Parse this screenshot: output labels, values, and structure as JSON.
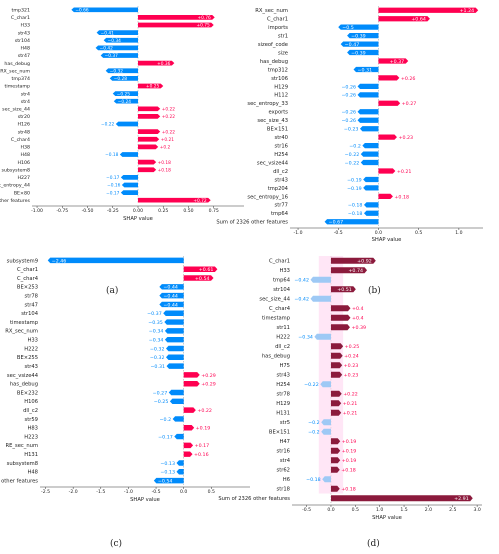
{
  "colors": {
    "pos": "#ff0051",
    "neg": "#008bfb",
    "zero": "#999999",
    "pos_dark": "#8b1a3c",
    "neg_light": "#9ec9f5",
    "highlight": "#ffd6f0"
  },
  "chart_data": [
    {
      "type": "bar",
      "panel": "(a)",
      "xlabel": "SHAP value",
      "xlim": [
        -1.05,
        1.05
      ],
      "xticks": [
        -1.0,
        -0.75,
        -0.5,
        -0.25,
        0.0,
        0.25,
        0.5,
        0.75
      ],
      "xtick_labels": [
        "-1.00",
        "-0.75",
        "-0.50",
        "-0.25",
        "0.00",
        "0.25",
        "0.50",
        "0.75"
      ],
      "categories": [
        "tmp321",
        "C_char1",
        "H33",
        "str43",
        "str104",
        "H48",
        "str47",
        "has_debug",
        "RX_sec_num",
        "tmp374",
        "timestamp",
        "str4",
        "str4",
        "sec_size_44",
        "str20",
        "H126",
        "str48",
        "C_char4",
        "H38",
        "H48",
        "H106",
        "subsystem8",
        "H227",
        "sec_entropy_44",
        "BE×80",
        "Sum of 2326 other features"
      ],
      "values": [
        -0.66,
        0.76,
        0.75,
        -0.41,
        -0.34,
        -0.42,
        -0.37,
        0.36,
        -0.32,
        -0.28,
        0.25,
        -0.25,
        -0.24,
        0.22,
        0.22,
        -0.22,
        0.22,
        0.21,
        0.2,
        -0.18,
        0.18,
        0.18,
        -0.17,
        -0.16,
        -0.17,
        0.72
      ],
      "labels": [
        "−0.66",
        "+0.76",
        "+0.75",
        "−0.41",
        "−0.34",
        "−0.42",
        "−0.37",
        "+0.36",
        "−0.32",
        "−0.28",
        "+0.25",
        "−0.25",
        "−0.24",
        "+0.22",
        "+0.22",
        "−0.22",
        "+0.22",
        "+0.21",
        "+0.2",
        "−0.18",
        "+0.18",
        "+0.18",
        "−0.17",
        "−0.16",
        "−0.17",
        "+0.72"
      ]
    },
    {
      "type": "bar",
      "panel": "(b)",
      "xlabel": "SHAP value",
      "xlim": [
        -1.1,
        1.3
      ],
      "xticks": [
        -1.0,
        -0.5,
        0.0,
        0.5,
        1.0
      ],
      "xtick_labels": [
        "-1.0",
        "-0.5",
        "0.0",
        "0.5",
        "1.0"
      ],
      "categories": [
        "RX_sec_num",
        "C_char1",
        "imports",
        "str1",
        "sizeof_code",
        "size",
        "has_debug",
        "tmp312",
        "str106",
        "H129",
        "H112",
        "sec_entropy_33",
        "exports",
        "sec_size_43",
        "BE×151",
        "str40",
        "str16",
        "H254",
        "sec_vsize44",
        "dll_c2",
        "str43",
        "tmp204",
        "sec_entropy_16",
        "str77",
        "tmp64",
        "Sum of 2326 other features"
      ],
      "values": [
        1.24,
        0.64,
        -0.5,
        -0.39,
        -0.47,
        -0.39,
        0.37,
        -0.31,
        0.26,
        -0.26,
        -0.26,
        0.27,
        -0.26,
        -0.26,
        -0.23,
        0.23,
        -0.2,
        -0.22,
        -0.22,
        0.21,
        -0.19,
        -0.19,
        0.18,
        -0.18,
        -0.18,
        -0.67
      ],
      "labels": [
        "+1.24",
        "+0.64",
        "−0.5",
        "−0.39",
        "−0.47",
        "−0.39",
        "+0.37",
        "−0.31",
        "+0.26",
        "−0.26",
        "−0.26",
        "+0.27",
        "−0.26",
        "−0.26",
        "−0.23",
        "+0.23",
        "−0.2",
        "−0.22",
        "−0.22",
        "+0.21",
        "−0.19",
        "−0.19",
        "+0.18",
        "−0.18",
        "−0.18",
        "−0.67"
      ]
    },
    {
      "type": "bar",
      "panel": "(c)",
      "xlabel": "SHAP value",
      "xlim": [
        -2.6,
        1.2
      ],
      "xticks": [
        -2.5,
        -2.0,
        -1.5,
        -1.0,
        -0.5,
        0.0,
        0.5
      ],
      "xtick_labels": [
        "-2.5",
        "-2.0",
        "-1.5",
        "-1.0",
        "-0.5",
        "0.0",
        "0.5"
      ],
      "categories": [
        "subsystem9",
        "C_char1",
        "C_char4",
        "BE×253",
        "str78",
        "str47",
        "str104",
        "timestamp",
        "RX_sec_num",
        "H33",
        "H222",
        "BE×255",
        "str43",
        "sec_vsize44",
        "has_debug",
        "BE×232",
        "H106",
        "dll_c2",
        "str59",
        "H83",
        "H223",
        "RE_sec_num",
        "H131",
        "subsystem8",
        "H48",
        "Sum of 2326 other features"
      ],
      "values": [
        -2.46,
        0.61,
        0.54,
        -0.44,
        -0.44,
        -0.44,
        -0.37,
        -0.35,
        -0.34,
        -0.34,
        -0.32,
        -0.32,
        -0.31,
        0.29,
        0.29,
        -0.27,
        -0.25,
        0.22,
        -0.2,
        0.19,
        -0.17,
        0.17,
        0.16,
        -0.13,
        -0.13,
        -0.54
      ],
      "labels": [
        "−2.46",
        "+0.61",
        "+0.54",
        "−0.44",
        "−0.44",
        "−0.44",
        "−0.37",
        "−0.35",
        "−0.34",
        "−0.34",
        "−0.32",
        "−0.32",
        "−0.31",
        "+0.29",
        "+0.29",
        "−0.27",
        "−0.25",
        "+0.22",
        "−0.2",
        "+0.19",
        "−0.17",
        "+0.17",
        "+0.16",
        "−0.13",
        "−0.13",
        "−0.54"
      ]
    },
    {
      "type": "bar",
      "panel": "(d)",
      "xlabel": "SHAP value",
      "xlim": [
        -0.8,
        3.1
      ],
      "xticks": [
        -0.5,
        0.0,
        0.5,
        1.0,
        1.5,
        2.0,
        2.5,
        3.0
      ],
      "xtick_labels": [
        "-0.5",
        "0.0",
        "0.5",
        "1.0",
        "1.5",
        "2.0",
        "2.5",
        "3.0"
      ],
      "categories": [
        "C_char1",
        "H33",
        "tmp64",
        "str104",
        "sec_size_44",
        "C_char4",
        "timestamp",
        "str11",
        "H222",
        "dll_c2",
        "has_debug",
        "H75",
        "str43",
        "H254",
        "str78",
        "H129",
        "H131",
        "str5",
        "BE×151",
        "H47",
        "str16",
        "str4",
        "str62",
        "H6",
        "str18",
        "Sum of 2326 other features"
      ],
      "values": [
        0.92,
        0.74,
        -0.42,
        0.51,
        -0.42,
        0.4,
        0.4,
        0.39,
        -0.34,
        0.25,
        0.24,
        0.23,
        0.23,
        -0.22,
        0.22,
        0.21,
        0.21,
        -0.2,
        -0.2,
        0.19,
        0.19,
        0.19,
        0.18,
        -0.18,
        0.18,
        2.91
      ],
      "labels": [
        "+0.92",
        "+0.74",
        "−0.42",
        "+0.51",
        "−0.42",
        "+0.4",
        "+0.4",
        "+0.39",
        "−0.34",
        "+0.25",
        "+0.24",
        "+0.23",
        "+0.23",
        "−0.22",
        "+0.22",
        "+0.21",
        "+0.21",
        "−0.2",
        "−0.2",
        "+0.19",
        "+0.19",
        "+0.19",
        "+0.18",
        "−0.18",
        "+0.18",
        "+2.91"
      ]
    }
  ]
}
